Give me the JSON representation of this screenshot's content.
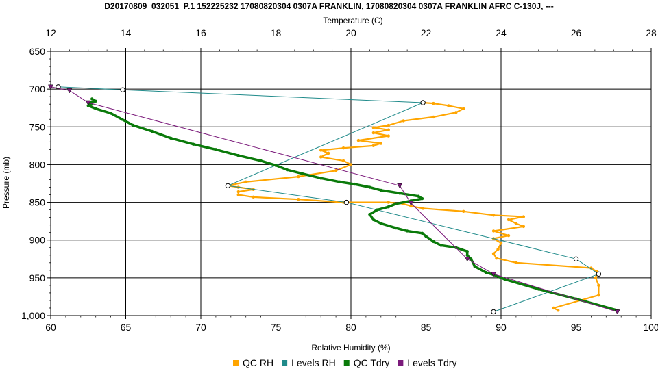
{
  "chart_data": {
    "type": "line",
    "title": "D20170809_032051_P.1 152225232 17080820304 0307A FRANKLIN, 17080820304 0307A FRANKLIN AFRC C-130J, ---",
    "top_axis": {
      "label": "Temperature (C)",
      "range": [
        12,
        28
      ],
      "ticks": [
        "12",
        "14",
        "16",
        "18",
        "20",
        "22",
        "24",
        "26",
        "28"
      ]
    },
    "bottom_axis": {
      "label": "Relative Humidity (%)",
      "range": [
        60,
        100
      ],
      "ticks": [
        "60",
        "65",
        "70",
        "75",
        "80",
        "85",
        "90",
        "95",
        "100"
      ]
    },
    "y_axis": {
      "label": "Pressure (mb)",
      "range": [
        650,
        1000
      ],
      "inverted": true,
      "ticks": [
        "650",
        "700",
        "750",
        "800",
        "850",
        "900",
        "950",
        "1,000"
      ]
    },
    "grid": true,
    "legend_position": "bottom",
    "series": [
      {
        "name": "QC RH",
        "axis": "bottom",
        "color": "#FFA500",
        "marker": "dot",
        "points": [
          [
            93.8,
            993
          ],
          [
            93.5,
            990
          ],
          [
            96.5,
            973
          ],
          [
            96.5,
            960
          ],
          [
            96.3,
            950
          ],
          [
            96.4,
            942
          ],
          [
            96.0,
            937
          ],
          [
            91.0,
            930
          ],
          [
            89.7,
            924
          ],
          [
            89.5,
            918
          ],
          [
            89.8,
            912
          ],
          [
            90.0,
            904
          ],
          [
            89.5,
            898
          ],
          [
            90.5,
            894
          ],
          [
            89.5,
            888
          ],
          [
            91.5,
            882
          ],
          [
            91.0,
            878
          ],
          [
            90.5,
            873
          ],
          [
            91.5,
            869
          ],
          [
            89.5,
            867
          ],
          [
            87.5,
            862
          ],
          [
            84.8,
            858
          ],
          [
            84.0,
            855
          ],
          [
            83.5,
            852
          ],
          [
            82.5,
            850
          ],
          [
            79.5,
            850
          ],
          [
            76.5,
            846
          ],
          [
            73.5,
            843
          ],
          [
            72.5,
            840
          ],
          [
            72.5,
            836
          ],
          [
            73.5,
            833
          ],
          [
            72.5,
            830
          ],
          [
            71.8,
            828
          ],
          [
            73.0,
            823
          ],
          [
            76.5,
            816
          ],
          [
            79.0,
            808
          ],
          [
            80.0,
            800
          ],
          [
            79.5,
            795
          ],
          [
            78.0,
            790
          ],
          [
            78.5,
            785
          ],
          [
            78.0,
            781
          ],
          [
            79.5,
            778
          ],
          [
            81.5,
            775
          ],
          [
            82.0,
            772
          ],
          [
            80.5,
            768
          ],
          [
            82.5,
            762
          ],
          [
            81.5,
            758
          ],
          [
            82.5,
            754
          ],
          [
            81.5,
            751
          ],
          [
            82.5,
            748
          ],
          [
            83.5,
            742
          ],
          [
            85.5,
            737
          ],
          [
            87.0,
            731
          ],
          [
            87.5,
            726
          ],
          [
            86.5,
            722
          ],
          [
            85.5,
            719
          ],
          [
            84.8,
            718
          ]
        ]
      },
      {
        "name": "Levels RH",
        "axis": "bottom",
        "color": "#1F8A8A",
        "marker": "circle",
        "points": [
          [
            89.5,
            995
          ],
          [
            96.5,
            945
          ],
          [
            95.0,
            925
          ],
          [
            79.7,
            850
          ],
          [
            71.8,
            828
          ],
          [
            84.8,
            718
          ],
          [
            64.8,
            701
          ],
          [
            60.5,
            697
          ]
        ]
      },
      {
        "name": "QC Tdry",
        "axis": "top",
        "color": "#0A7A0A",
        "marker": "dot",
        "points": [
          [
            27.1,
            993
          ],
          [
            26.0,
            978
          ],
          [
            25.0,
            965
          ],
          [
            24.1,
            952
          ],
          [
            23.8,
            946
          ],
          [
            23.6,
            943
          ],
          [
            23.3,
            935
          ],
          [
            23.2,
            925
          ],
          [
            23.1,
            920
          ],
          [
            23.1,
            915
          ],
          [
            22.8,
            910
          ],
          [
            22.4,
            907
          ],
          [
            22.2,
            902
          ],
          [
            22.0,
            895
          ],
          [
            21.9,
            891
          ],
          [
            21.5,
            888
          ],
          [
            21.2,
            884
          ],
          [
            20.8,
            878
          ],
          [
            20.6,
            873
          ],
          [
            20.5,
            866
          ],
          [
            20.7,
            860
          ],
          [
            21.0,
            856
          ],
          [
            21.2,
            852
          ],
          [
            21.6,
            848
          ],
          [
            21.9,
            845
          ],
          [
            21.8,
            842
          ],
          [
            21.3,
            838
          ],
          [
            20.8,
            834
          ],
          [
            20.5,
            830
          ],
          [
            20.1,
            826
          ],
          [
            19.7,
            823
          ],
          [
            19.2,
            818
          ],
          [
            18.7,
            812
          ],
          [
            18.3,
            807
          ],
          [
            18.0,
            801
          ],
          [
            17.6,
            795
          ],
          [
            17.0,
            788
          ],
          [
            16.4,
            780
          ],
          [
            15.8,
            773
          ],
          [
            15.2,
            765
          ],
          [
            14.7,
            756
          ],
          [
            14.2,
            748
          ],
          [
            13.9,
            740
          ],
          [
            13.6,
            732
          ],
          [
            13.2,
            726
          ],
          [
            13.0,
            722
          ],
          [
            13.1,
            720
          ],
          [
            13.0,
            718
          ],
          [
            13.2,
            716
          ],
          [
            13.1,
            713
          ]
        ]
      },
      {
        "name": "Levels Tdry",
        "axis": "top",
        "color": "#7B1A7B",
        "marker": "triangle",
        "points": [
          [
            27.1,
            995
          ],
          [
            23.8,
            945
          ],
          [
            23.1,
            925
          ],
          [
            21.6,
            851
          ],
          [
            21.3,
            828
          ],
          [
            13.0,
            718
          ],
          [
            12.5,
            702
          ],
          [
            12.0,
            697
          ]
        ]
      }
    ]
  }
}
